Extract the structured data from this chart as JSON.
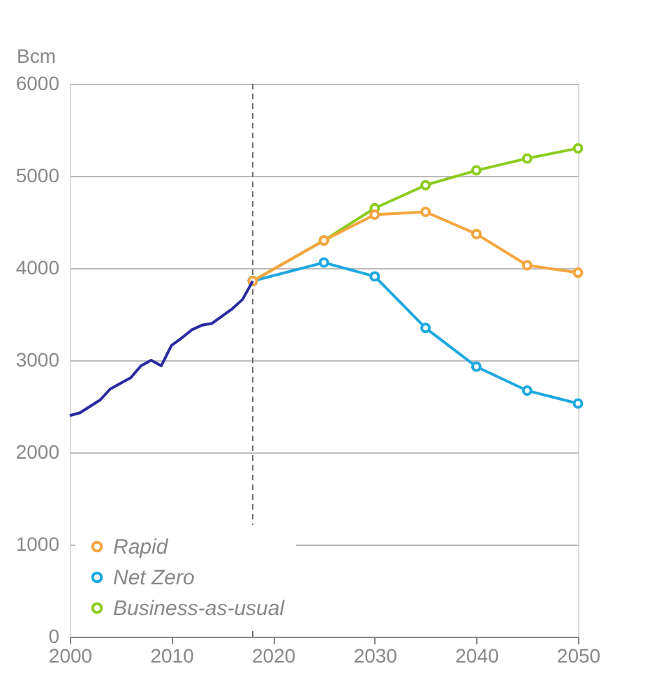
{
  "chart_data": {
    "type": "line",
    "ylabel": "Bcm",
    "xlim": [
      2000,
      2050
    ],
    "xticks": [
      2000,
      2010,
      2020,
      2030,
      2040,
      2050
    ],
    "ylim": [
      0,
      6000
    ],
    "yticks": [
      0,
      1000,
      2000,
      3000,
      4000,
      5000,
      6000
    ],
    "grid": "y",
    "legend": "bottom left",
    "marker": "circle",
    "ref_lines": [
      {
        "axis": "x",
        "value": 2018,
        "color": "#666666",
        "line_style": "dashed"
      }
    ],
    "series": [
      {
        "color": "#2b2ba0",
        "marker": "none",
        "x": [
          2000,
          2001,
          2003,
          2004,
          2006,
          2007,
          2008,
          2009,
          2010,
          2011,
          2012,
          2013,
          2014,
          2015,
          2016,
          2017,
          2018
        ],
        "values": [
          2400,
          2430,
          2570,
          2690,
          2810,
          2940,
          3000,
          2940,
          3160,
          3240,
          3330,
          3380,
          3400,
          3480,
          3560,
          3660,
          3860
        ]
      },
      {
        "name": "Rapid",
        "color": "#f5a540",
        "x": [
          2018,
          2025,
          2030,
          2035,
          2040,
          2045,
          2050
        ],
        "values": [
          3860,
          4300,
          4580,
          4610,
          4370,
          4030,
          3950
        ]
      },
      {
        "name": "Net Zero",
        "color": "#1ea8e0",
        "x": [
          2018,
          2025,
          2030,
          2035,
          2040,
          2045,
          2050
        ],
        "values": [
          3860,
          4060,
          3910,
          3350,
          2930,
          2670,
          2530
        ]
      },
      {
        "name": "Business-as-usual",
        "color": "#8ccc1e",
        "x": [
          2018,
          2025,
          2030,
          2035,
          2040,
          2045,
          2050
        ],
        "values": [
          3860,
          4300,
          4650,
          4900,
          5060,
          5190,
          5300
        ]
      }
    ]
  }
}
